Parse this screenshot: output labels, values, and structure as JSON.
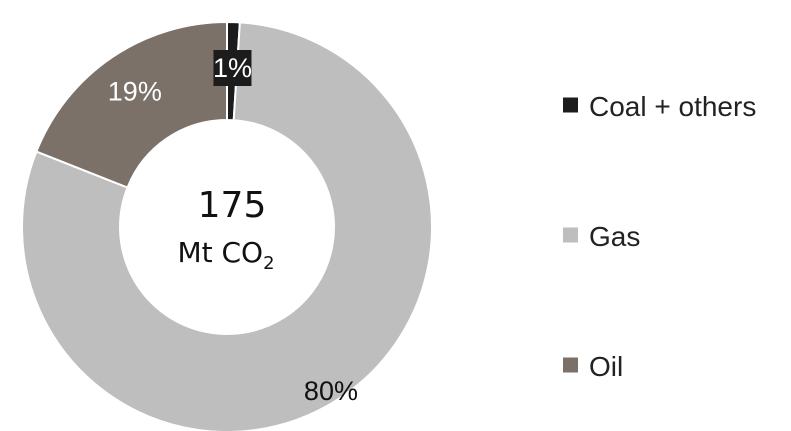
{
  "chart_data": {
    "type": "pie",
    "subtype": "donut",
    "center_label": {
      "value": "175",
      "unit_main": "Mt CO",
      "unit_subscript": "2"
    },
    "slices": [
      {
        "label": "Coal + others",
        "value": 1,
        "display": "1%",
        "color": "#1c1c1c"
      },
      {
        "label": "Gas",
        "value": 80,
        "display": "80%",
        "color": "#bebebe"
      },
      {
        "label": "Oil",
        "value": 19,
        "display": "19%",
        "color": "#7b7169"
      }
    ],
    "legend": {
      "placement": "right",
      "items": [
        "Coal + others",
        "Gas",
        "Oil"
      ]
    },
    "label_colors": {
      "Coal + others": "#ffffff",
      "Gas": "#111111",
      "Oil": "#ffffff"
    }
  }
}
